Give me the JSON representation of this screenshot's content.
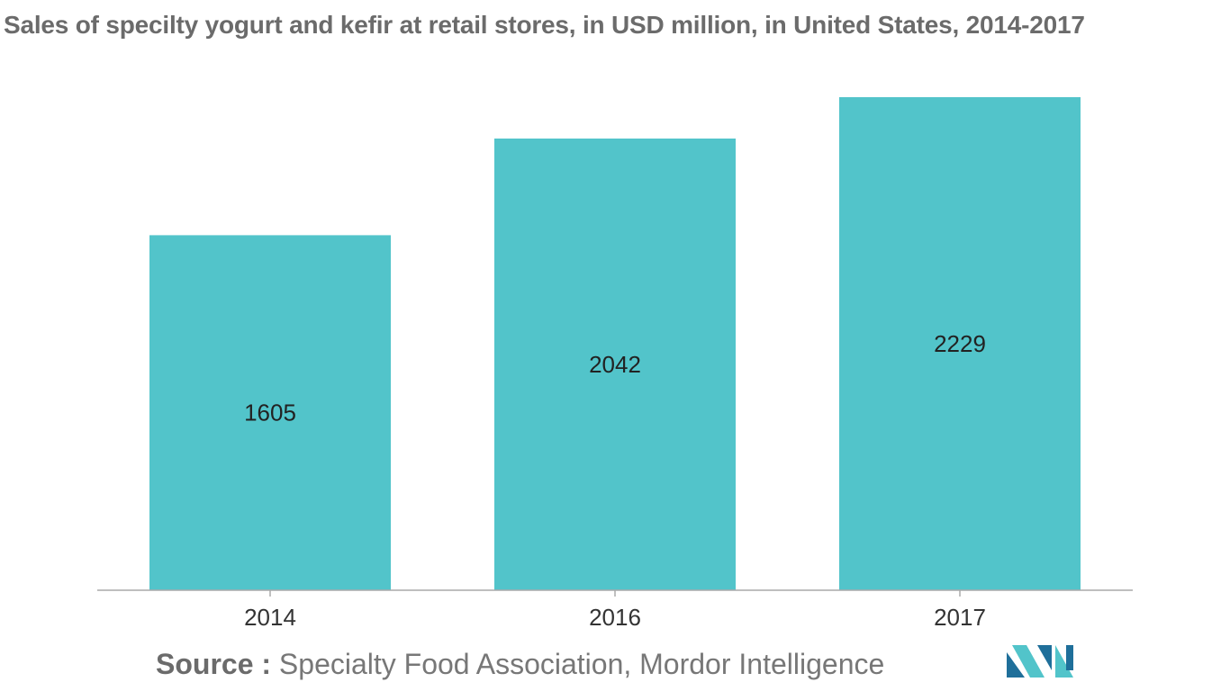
{
  "title": "Sales of specilty yogurt and kefir at retail stores, in USD million, in United States, 2014-2017",
  "source": {
    "label": "Source :",
    "text": "Specialty Food Association, Mordor Intelligence"
  },
  "colors": {
    "bar": "#52C4CA",
    "axis": "#aaaaaa",
    "logo_dark": "#1f6f9a",
    "logo_light": "#52C4CA"
  },
  "chart_data": {
    "type": "bar",
    "title": "Sales of specilty yogurt and kefir at retail stores, in USD million, in United States, 2014-2017",
    "categories": [
      "2014",
      "2016",
      "2017"
    ],
    "values": [
      1605,
      2042,
      2229
    ],
    "xlabel": "",
    "ylabel": "",
    "ylim": [
      0,
      2229
    ],
    "grid": false,
    "legend": "none",
    "data_labels": "inside-center"
  }
}
